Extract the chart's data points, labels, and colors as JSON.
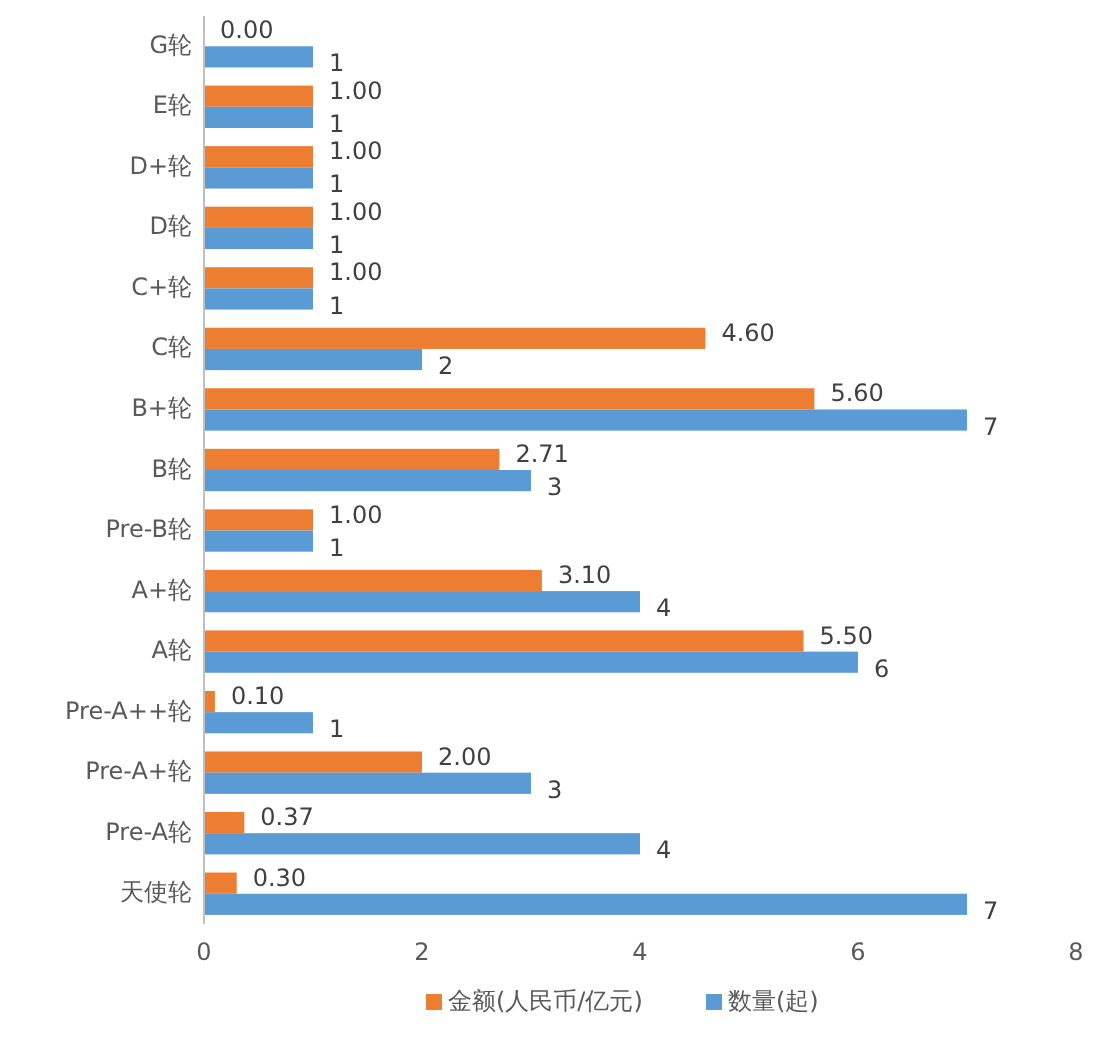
{
  "chart_data": {
    "type": "bar",
    "orientation": "horizontal",
    "categories": [
      "G轮",
      "E轮",
      "D+轮",
      "D轮",
      "C+轮",
      "C轮",
      "B+轮",
      "B轮",
      "Pre-B轮",
      "A+轮",
      "A轮",
      "Pre-A++轮",
      "Pre-A+轮",
      "Pre-A轮",
      "天使轮"
    ],
    "series": [
      {
        "name": "金额(人民币/亿元)",
        "color": "#ed7d31",
        "values": [
          0,
          1,
          1,
          1,
          1,
          4.6,
          5.6,
          2.71,
          1,
          3.1,
          5.5,
          0.1,
          2,
          0.37,
          0.3
        ],
        "value_labels": [
          "0.00",
          "1.00",
          "1.00",
          "1.00",
          "1.00",
          "4.60",
          "5.60",
          "2.71",
          "1.00",
          "3.10",
          "5.50",
          "0.10",
          "2.00",
          "0.37",
          "0.30"
        ]
      },
      {
        "name": "数量(起)",
        "color": "#5b9bd5",
        "values": [
          1,
          1,
          1,
          1,
          1,
          2,
          7,
          3,
          1,
          4,
          6,
          1,
          3,
          4,
          7
        ],
        "value_labels": [
          "1",
          "1",
          "1",
          "1",
          "1",
          "2",
          "7",
          "3",
          "1",
          "4",
          "6",
          "1",
          "3",
          "4",
          "7"
        ]
      }
    ],
    "xlim": [
      0,
      8
    ],
    "xticks": [
      0,
      2,
      4,
      6,
      8
    ],
    "legend": "bottom"
  }
}
